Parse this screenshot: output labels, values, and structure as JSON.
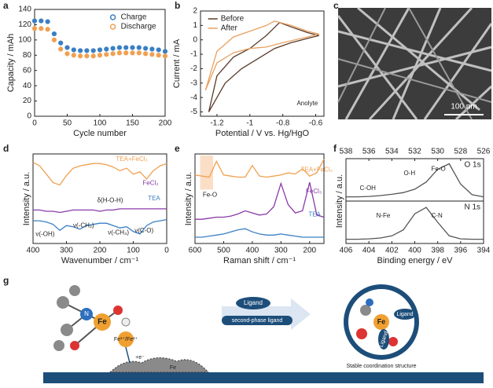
{
  "panel_letters": [
    "a",
    "b",
    "c",
    "d",
    "e",
    "f",
    "g"
  ],
  "chart_data": [
    {
      "type": "scatter",
      "xlabel": "Cycle  number",
      "ylabel": "Capacity / mAh",
      "x": [
        0,
        10,
        20,
        30,
        40,
        50,
        60,
        70,
        80,
        90,
        100,
        110,
        120,
        130,
        140,
        150,
        160,
        170,
        180,
        190,
        200
      ],
      "xlim": [
        0,
        200
      ],
      "xticks": [
        0,
        50,
        100,
        150,
        200
      ],
      "ylim": [
        0,
        140
      ],
      "yticks": [
        0,
        20,
        40,
        60,
        80,
        100,
        120,
        140
      ],
      "legend": "upper right",
      "series": [
        {
          "name": "Charge",
          "color": "#3a7fc4",
          "values": [
            125,
            125,
            124,
            108,
            96,
            90,
            87,
            86,
            86,
            86,
            87,
            88,
            89,
            90,
            90,
            90,
            90,
            89,
            88,
            87,
            85
          ]
        },
        {
          "name": "Discharge",
          "color": "#f0a050",
          "values": [
            115,
            115,
            114,
            100,
            88,
            82,
            80,
            79,
            79,
            79,
            80,
            81,
            82,
            83,
            83,
            83,
            83,
            82,
            81,
            80,
            79
          ]
        }
      ]
    },
    {
      "type": "line",
      "xlabel": "Potential / V vs. Hg/HgO",
      "ylabel": "Current / mA",
      "xlim": [
        -1.3,
        -0.55
      ],
      "xticks": [
        -1.2,
        -1.0,
        -0.8,
        -0.6
      ],
      "ylim": [
        -5.3,
        2
      ],
      "yticks": [
        -5,
        -4,
        -3,
        -2,
        -1,
        0,
        1,
        2
      ],
      "legend": "upper left",
      "annotations": [
        "Anolyte"
      ],
      "series": [
        {
          "name": "Before",
          "color": "#5a3a2a",
          "x": [
            -1.25,
            -1.2,
            -1.1,
            -1.0,
            -0.9,
            -0.82,
            -0.75,
            -0.65,
            -0.58,
            -0.65,
            -0.75,
            -0.85,
            -0.95,
            -1.05,
            -1.15,
            -1.25
          ],
          "values": [
            -5,
            -2.5,
            -1.2,
            -0.6,
            0.3,
            1.2,
            0.9,
            0.5,
            0.3,
            0.1,
            -0.2,
            -0.6,
            -1.3,
            -2.0,
            -3.0,
            -5
          ]
        },
        {
          "name": "After",
          "color": "#e8a060",
          "x": [
            -1.27,
            -1.2,
            -1.1,
            -1.0,
            -0.9,
            -0.85,
            -0.75,
            -0.65,
            -0.58,
            -0.65,
            -0.8,
            -0.9,
            -1.0,
            -1.1,
            -1.2,
            -1.27
          ],
          "values": [
            -3.5,
            -0.8,
            0.2,
            0.6,
            1.0,
            1.3,
            1.0,
            0.6,
            0.4,
            0.2,
            -0.2,
            -0.5,
            -0.6,
            -0.9,
            -1.6,
            -3.5
          ]
        }
      ]
    },
    {
      "type": "line",
      "xlabel": "Wavenumber / cm⁻¹",
      "ylabel": "Intensity / a.u.",
      "x": [
        400,
        380,
        360,
        340,
        320,
        300,
        280,
        260,
        240,
        220,
        200,
        180,
        160,
        140,
        120,
        100,
        80,
        60,
        40,
        20,
        0
      ],
      "xlim": [
        400,
        0
      ],
      "xticks": [
        400,
        300,
        200,
        100,
        0
      ],
      "ylim": [
        2.5,
        10
      ],
      "annotations": [
        "ν(-OH)",
        "ν(-CH₂)",
        "δ(H-O-H)",
        "ν(-CH₃)",
        "ν(C-O)"
      ],
      "series": [
        {
          "name": "TEA+FeCl₃",
          "color": "#f0a050",
          "values": [
            9.3,
            9.0,
            8.3,
            7.6,
            7.4,
            8.2,
            8.8,
            9.0,
            9.1,
            9.2,
            9.2,
            9.1,
            8.9,
            8.6,
            8.8,
            8.3,
            8.5,
            7.9,
            8.6,
            9.0,
            9.2
          ]
        },
        {
          "name": "FeCl₃",
          "color": "#8a3aa8",
          "values": [
            5.3,
            5.3,
            5.2,
            5.2,
            5.1,
            5.2,
            5.3,
            5.3,
            5.3,
            5.3,
            5.2,
            5.3,
            5.3,
            5.4,
            5.4,
            5.4,
            5.4,
            5.4,
            5.4,
            5.4,
            5.4
          ]
        },
        {
          "name": "TEA",
          "color": "#3a7fc4",
          "values": [
            4.4,
            4.4,
            4.3,
            4.1,
            3.6,
            4.0,
            3.9,
            3.7,
            4.0,
            4.1,
            4.2,
            4.2,
            4.0,
            3.8,
            3.9,
            3.5,
            3.3,
            4.0,
            4.3,
            4.4,
            4.5
          ]
        }
      ]
    },
    {
      "type": "line",
      "xlabel": "Raman shift / cm⁻¹",
      "ylabel": "Intensity / a.u.",
      "x": [
        600,
        575,
        550,
        525,
        500,
        475,
        450,
        425,
        400,
        375,
        350,
        325,
        300,
        275,
        250,
        225,
        200,
        175,
        150
      ],
      "xlim": [
        600,
        150
      ],
      "xticks": [
        600,
        500,
        400,
        300,
        200
      ],
      "ylim": [
        1.5,
        10
      ],
      "annotations": [
        "Fe-O"
      ],
      "series": [
        {
          "name": "TEA+FeCl₃",
          "color": "#f0a050",
          "values": [
            8.0,
            7.9,
            7.8,
            9.3,
            8.0,
            7.9,
            7.8,
            7.8,
            8.9,
            7.9,
            7.8,
            7.9,
            8.0,
            8.2,
            8.1,
            8.6,
            7.9,
            8.2,
            9.5
          ]
        },
        {
          "name": "FeCl₃",
          "color": "#8a3aa8",
          "values": [
            3.8,
            3.8,
            3.9,
            4.0,
            4.0,
            4.1,
            4.3,
            4.6,
            4.4,
            4.2,
            4.3,
            5.0,
            7.2,
            5.2,
            4.4,
            4.6,
            7.3,
            4.2,
            4.0
          ]
        },
        {
          "name": "TEA",
          "color": "#3a7fc4",
          "values": [
            2.1,
            2.1,
            2.2,
            2.3,
            2.4,
            2.6,
            2.8,
            2.9,
            2.6,
            2.4,
            2.3,
            2.3,
            2.4,
            2.3,
            2.2,
            2.1,
            2.1,
            2.1,
            2.1
          ]
        }
      ]
    },
    {
      "type": "line",
      "title": "O 1s",
      "xaxis": "top",
      "x": [
        538,
        537,
        536,
        535,
        534,
        533,
        532,
        531,
        530,
        529,
        528,
        527,
        526
      ],
      "xlim": [
        538,
        526
      ],
      "xticks": [
        538,
        536,
        534,
        532,
        530,
        528,
        526
      ],
      "ylim": [
        0,
        10
      ],
      "annotations": [
        "C-OH",
        "O-H",
        "Fe-O"
      ],
      "series": [
        {
          "color": "#555555",
          "values": [
            1.0,
            1.0,
            1.1,
            1.3,
            1.6,
            2.0,
            2.8,
            4.5,
            7.5,
            8.8,
            4.0,
            1.5,
            1.0
          ]
        }
      ]
    },
    {
      "type": "line",
      "title": "N 1s",
      "xlabel": "Binding energy / eV",
      "ylabel": "Intensity / a.u.",
      "x": [
        406,
        405,
        404,
        403,
        402,
        401,
        400,
        399,
        398,
        397,
        396,
        395,
        394
      ],
      "xlim": [
        406,
        394
      ],
      "xticks": [
        406,
        404,
        402,
        400,
        398,
        396,
        394
      ],
      "ylim": [
        0,
        10
      ],
      "annotations": [
        "N-Fe",
        "C-N"
      ],
      "series": [
        {
          "color": "#555555",
          "values": [
            1.0,
            1.0,
            1.1,
            1.3,
            1.8,
            3.2,
            7.0,
            8.5,
            5.0,
            1.8,
            1.1,
            1.0,
            1.0
          ]
        }
      ]
    }
  ],
  "panels": {
    "c": {
      "scale_bar": "100 nm"
    }
  },
  "diagram": {
    "fe_left": "Fe",
    "n_left": "N",
    "redox": "Fe³⁺/Fe²⁺",
    "electron": "+e⁻",
    "electrode": "Fe",
    "ligand": "Ligand",
    "second_phase": "second-phase ligand",
    "fe_right": "Fe",
    "ligand_right_1": "Ligand",
    "ligand_right_2": "Ligand",
    "caption": "Stable coordination structure"
  }
}
